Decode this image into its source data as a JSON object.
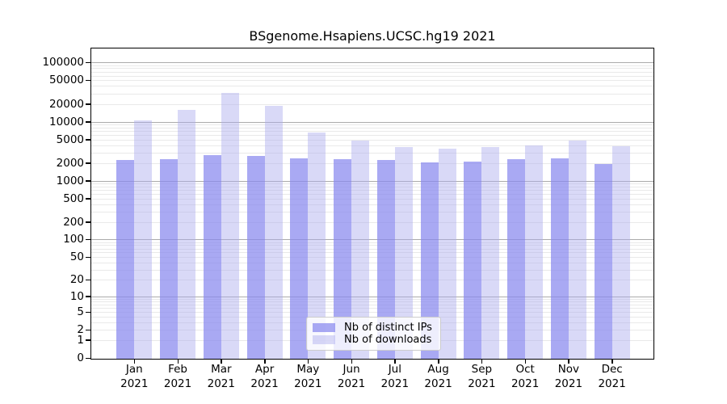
{
  "chart_data": {
    "type": "bar",
    "title": "BSgenome.Hsapiens.UCSC.hg19 2021",
    "xlabel": "",
    "ylabel": "",
    "yscale": "log1p",
    "ylim": [
      0,
      173000
    ],
    "grid": true,
    "legend_position": "lower center",
    "months": [
      "Jan",
      "Feb",
      "Mar",
      "Apr",
      "May",
      "Jun",
      "Jul",
      "Aug",
      "Sep",
      "Oct",
      "Nov",
      "Dec"
    ],
    "year": "2021",
    "categories": [
      "Jan 2021",
      "Feb 2021",
      "Mar 2021",
      "Apr 2021",
      "May 2021",
      "Jun 2021",
      "Jul 2021",
      "Aug 2021",
      "Sep 2021",
      "Oct 2021",
      "Nov 2021",
      "Dec 2021"
    ],
    "y_tick_values": [
      0,
      1,
      2,
      5,
      10,
      20,
      50,
      100,
      200,
      500,
      1000,
      2000,
      5000,
      10000,
      20000,
      50000,
      100000
    ],
    "y_tick_labels": [
      "0",
      "1",
      "2",
      "5",
      "10",
      "20",
      "50",
      "100",
      "200",
      "500",
      "1000",
      "2000",
      "5000",
      "10000",
      "20000",
      "50000",
      "100000"
    ],
    "series": [
      {
        "name": "Nb of distinct IPs",
        "values": [
          2210,
          2290,
          2670,
          2590,
          2390,
          2340,
          2220,
          2060,
          2080,
          2290,
          2400,
          1930
        ]
      },
      {
        "name": "Nb of downloads",
        "values": [
          10500,
          15600,
          30300,
          18700,
          6500,
          4700,
          3700,
          3500,
          3700,
          3900,
          4700,
          3770
        ]
      }
    ]
  },
  "colors": {
    "ips_fill": "rgba(136,136,238,0.72)",
    "downloads_fill": "rgba(170,170,238,0.45)",
    "grid_major": "#ababab",
    "grid_minor": "#e9e9e9",
    "axis": "#000000",
    "legend_border": "#cccccc",
    "legend_bg": "rgba(255,255,255,0.8)"
  }
}
